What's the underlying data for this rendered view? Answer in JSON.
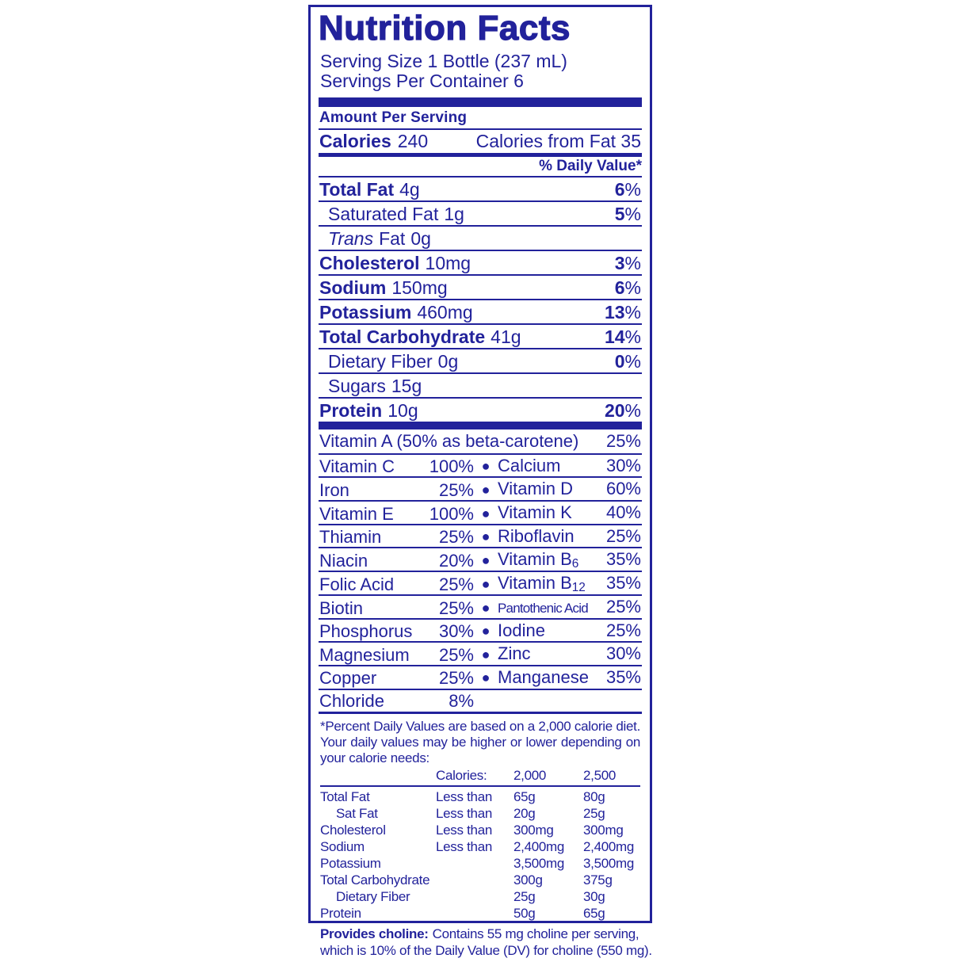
{
  "colors": {
    "ink": "#22229B",
    "background": "#FFFFFF"
  },
  "label": {
    "title": "Nutrition Facts",
    "serving_size": "Serving Size 1 Bottle (237 mL)",
    "servings_per_container": "Servings Per Container 6",
    "amount_per_serving": "Amount Per Serving",
    "calories": {
      "label": "Calories",
      "value": "240",
      "from_fat": "Calories from Fat 35"
    },
    "daily_value_header": "% Daily Value*",
    "nutrients": [
      {
        "name": "Total Fat",
        "amount": "4g",
        "dv": "6",
        "pct": "%"
      },
      {
        "name": "Saturated Fat",
        "amount": "1g",
        "dv": "5",
        "pct": "%"
      },
      {
        "name": "Trans",
        "name_rest": "Fat",
        "amount": "0g",
        "dv": "",
        "pct": ""
      },
      {
        "name": "Cholesterol",
        "amount": "10mg",
        "dv": "3",
        "pct": "%"
      },
      {
        "name": "Sodium",
        "amount": "150mg",
        "dv": "6",
        "pct": "%"
      },
      {
        "name": "Potassium",
        "amount": "460mg",
        "dv": "13",
        "pct": "%"
      },
      {
        "name": "Total Carbohydrate",
        "amount": "41g",
        "dv": "14",
        "pct": "%"
      },
      {
        "name": "Dietary Fiber",
        "amount": "0g",
        "dv": "0",
        "pct": "%"
      },
      {
        "name": "Sugars",
        "amount": "15g",
        "dv": "",
        "pct": ""
      },
      {
        "name": "Protein",
        "amount": "10g",
        "dv": "20",
        "pct": "%"
      }
    ],
    "vitamins": {
      "bullet": "●",
      "full_row": {
        "name": "Vitamin A (50% as beta-carotene)",
        "value": "25%"
      },
      "pairs": [
        {
          "left": {
            "name": "Vitamin C",
            "value": "100%"
          },
          "right": {
            "name": "Calcium",
            "sub": "",
            "value": "30%"
          }
        },
        {
          "left": {
            "name": "Iron",
            "value": "25%"
          },
          "right": {
            "name": "Vitamin D",
            "sub": "",
            "value": "60%"
          }
        },
        {
          "left": {
            "name": "Vitamin E",
            "value": "100%"
          },
          "right": {
            "name": "Vitamin K",
            "sub": "",
            "value": "40%"
          }
        },
        {
          "left": {
            "name": "Thiamin",
            "value": "25%"
          },
          "right": {
            "name": "Riboflavin",
            "sub": "",
            "value": "25%"
          }
        },
        {
          "left": {
            "name": "Niacin",
            "value": "20%"
          },
          "right": {
            "name": "Vitamin B",
            "sub": "6",
            "value": "35%"
          }
        },
        {
          "left": {
            "name": "Folic Acid",
            "value": "25%"
          },
          "right": {
            "name": "Vitamin B",
            "sub": "12",
            "value": "35%"
          }
        },
        {
          "left": {
            "name": "Biotin",
            "value": "25%"
          },
          "right": {
            "name": "Pantothenic Acid",
            "sub": "",
            "value": "25%"
          }
        },
        {
          "left": {
            "name": "Phosphorus",
            "value": "30%"
          },
          "right": {
            "name": "Iodine",
            "sub": "",
            "value": "25%"
          }
        },
        {
          "left": {
            "name": "Magnesium",
            "value": "25%"
          },
          "right": {
            "name": "Zinc",
            "sub": "",
            "value": "30%"
          }
        },
        {
          "left": {
            "name": "Copper",
            "value": "25%"
          },
          "right": {
            "name": "Manganese",
            "sub": "",
            "value": "35%"
          }
        }
      ],
      "last_row": {
        "name": "Chloride",
        "value": "8%"
      }
    },
    "footnote": {
      "text": "*Percent Daily Values are based on a 2,000 calorie diet. Your daily values may be higher or lower depending on your calorie needs:",
      "header": {
        "label": "Calories:",
        "col1": "2,000",
        "col2": "2,500"
      },
      "rows": [
        {
          "name": "Total Fat",
          "qual": "Less than",
          "v1": "65g",
          "v2": "80g"
        },
        {
          "name": "Sat Fat",
          "qual": "Less than",
          "v1": "20g",
          "v2": "25g"
        },
        {
          "name": "Cholesterol",
          "qual": "Less than",
          "v1": "300mg",
          "v2": "300mg"
        },
        {
          "name": "Sodium",
          "qual": "Less than",
          "v1": "2,400mg",
          "v2": "2,400mg"
        },
        {
          "name": "Potassium",
          "qual": "",
          "v1": "3,500mg",
          "v2": "3,500mg"
        },
        {
          "name": "Total Carbohydrate",
          "qual": "",
          "v1": "300g",
          "v2": "375g"
        },
        {
          "name": "Dietary Fiber",
          "qual": "",
          "v1": "25g",
          "v2": "30g"
        },
        {
          "name": "Protein",
          "qual": "",
          "v1": "50g",
          "v2": "65g"
        }
      ]
    },
    "choline_note": {
      "lead": "Provides choline:",
      "text": "Contains 55 mg choline per serving, which is 10% of the Daily Value (DV) for choline (550 mg)."
    }
  }
}
